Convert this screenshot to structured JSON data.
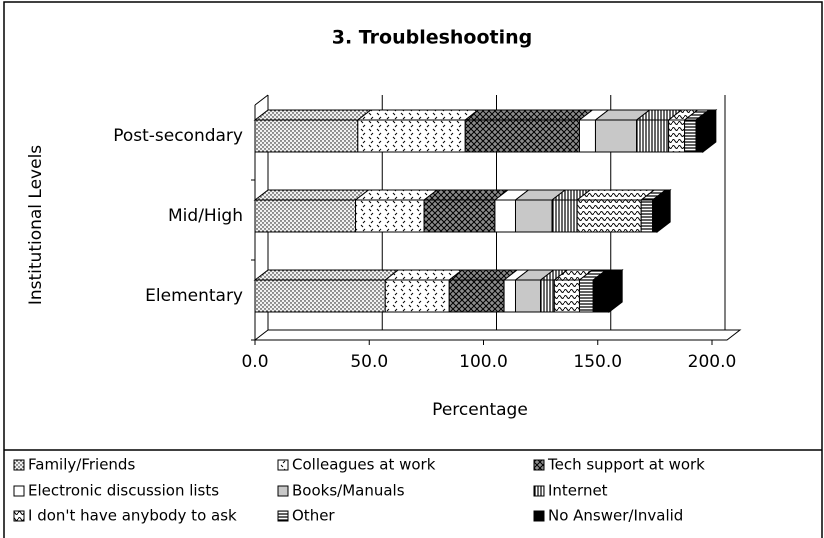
{
  "chart_data": {
    "type": "bar",
    "orientation": "horizontal",
    "stacked": true,
    "title": "3.  Troubleshooting",
    "x_label": "Percentage",
    "y_label": "Institutional Levels",
    "categories": [
      "Elementary",
      "Mid/High",
      "Post-secondary"
    ],
    "series": [
      {
        "name": "Family/Friends",
        "color": "#f2f2f2",
        "values": [
          57,
          44,
          45
        ]
      },
      {
        "name": "Colleagues at work",
        "color": "#ffffff",
        "values": [
          28,
          30,
          47
        ]
      },
      {
        "name": "Tech support at work",
        "color": "#8c8c8c",
        "values": [
          24,
          31,
          50
        ]
      },
      {
        "name": "Electronic discussion lists",
        "color": "#ffffff",
        "values": [
          5,
          9,
          7
        ]
      },
      {
        "name": "Books/Manuals",
        "color": "#c8c8c8",
        "values": [
          11,
          16,
          18
        ]
      },
      {
        "name": "Internet",
        "color": "#ffffff",
        "values": [
          6,
          11,
          14
        ]
      },
      {
        "name": "I don't have anybody to ask",
        "color": "#ffffff",
        "values": [
          11,
          28,
          7
        ]
      },
      {
        "name": "Other",
        "color": "#ffffff",
        "values": [
          6,
          5,
          5
        ]
      },
      {
        "name": "No Answer/Invalid",
        "color": "#000000",
        "values": [
          7,
          2,
          3
        ]
      }
    ],
    "xlim": [
      0,
      200
    ],
    "xticks": [
      {
        "value": 0,
        "label": "0.0"
      },
      {
        "value": 50,
        "label": "50.0"
      },
      {
        "value": 100,
        "label": "100.0"
      },
      {
        "value": 150,
        "label": "150.0"
      },
      {
        "value": 200,
        "label": "200.0"
      }
    ],
    "grid": true
  }
}
